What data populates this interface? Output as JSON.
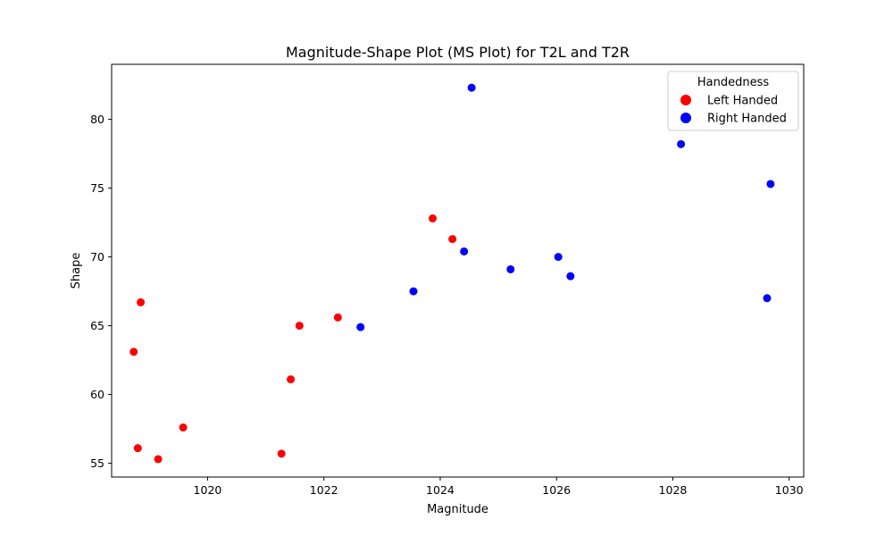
{
  "chart_data": {
    "type": "scatter",
    "title": "Magnitude-Shape Plot (MS Plot) for T2L and T2R",
    "xlabel": "Magnitude",
    "ylabel": "Shape",
    "xlim": [
      1018.35,
      1030.25
    ],
    "ylim": [
      54.0,
      84.0
    ],
    "xticks": [
      1020,
      1022,
      1024,
      1026,
      1028,
      1030
    ],
    "yticks": [
      55,
      60,
      65,
      70,
      75,
      80
    ],
    "grid": false,
    "legend": {
      "title": "Handedness",
      "position": "top-right"
    },
    "series": [
      {
        "name": "Left Handed",
        "color": "#ff0000",
        "points": [
          {
            "x": 1018.73,
            "y": 63.1
          },
          {
            "x": 1018.85,
            "y": 66.7
          },
          {
            "x": 1018.8,
            "y": 56.1
          },
          {
            "x": 1019.15,
            "y": 55.3
          },
          {
            "x": 1019.58,
            "y": 57.6
          },
          {
            "x": 1021.27,
            "y": 55.7
          },
          {
            "x": 1021.43,
            "y": 61.1
          },
          {
            "x": 1021.58,
            "y": 65.0
          },
          {
            "x": 1022.24,
            "y": 65.6
          },
          {
            "x": 1023.87,
            "y": 72.8
          },
          {
            "x": 1024.21,
            "y": 71.3
          }
        ]
      },
      {
        "name": "Right Handed",
        "color": "#0000ff",
        "points": [
          {
            "x": 1022.63,
            "y": 64.9
          },
          {
            "x": 1023.54,
            "y": 67.5
          },
          {
            "x": 1024.41,
            "y": 70.4
          },
          {
            "x": 1024.54,
            "y": 82.3
          },
          {
            "x": 1025.21,
            "y": 69.1
          },
          {
            "x": 1026.03,
            "y": 70.0
          },
          {
            "x": 1026.24,
            "y": 68.6
          },
          {
            "x": 1028.14,
            "y": 78.2
          },
          {
            "x": 1029.62,
            "y": 67.0
          },
          {
            "x": 1029.68,
            "y": 75.3
          }
        ]
      }
    ]
  }
}
